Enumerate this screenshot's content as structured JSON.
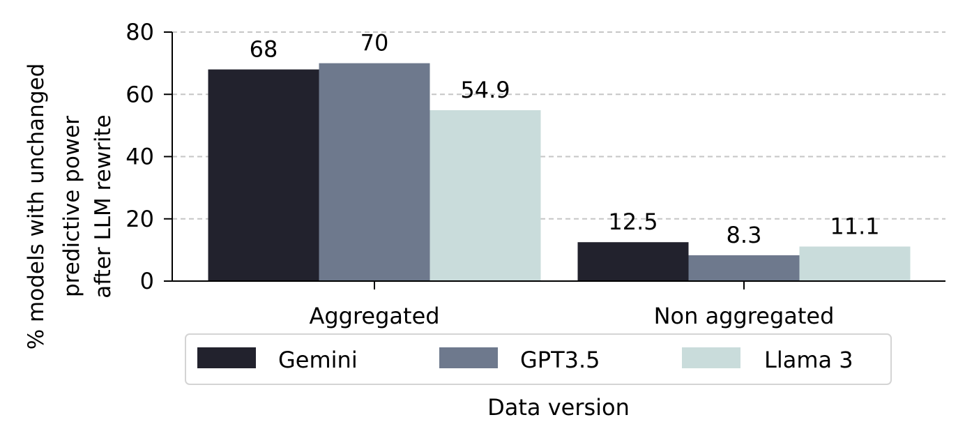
{
  "chart_data": {
    "type": "bar",
    "categories": [
      "Aggregated",
      "Non aggregated"
    ],
    "series": [
      {
        "name": "Gemini",
        "values": [
          68,
          12.5
        ],
        "labels": [
          "68",
          "12.5"
        ],
        "color": "#22222d"
      },
      {
        "name": "GPT3.5",
        "values": [
          70,
          8.3
        ],
        "labels": [
          "70",
          "8.3"
        ],
        "color": "#6e798d"
      },
      {
        "name": "Llama 3",
        "values": [
          54.9,
          11.1
        ],
        "labels": [
          "54.9",
          "11.1"
        ],
        "color": "#c9dcdb"
      }
    ],
    "xlabel": "Data version",
    "ylabel_lines": [
      "% models with unchanged",
      "predictive power",
      "after LLM rewrite"
    ],
    "ylim": [
      0,
      80
    ],
    "yticks": [
      0,
      20,
      40,
      60,
      80
    ],
    "grid": "horizontal dashed",
    "legend_placement": "below"
  }
}
